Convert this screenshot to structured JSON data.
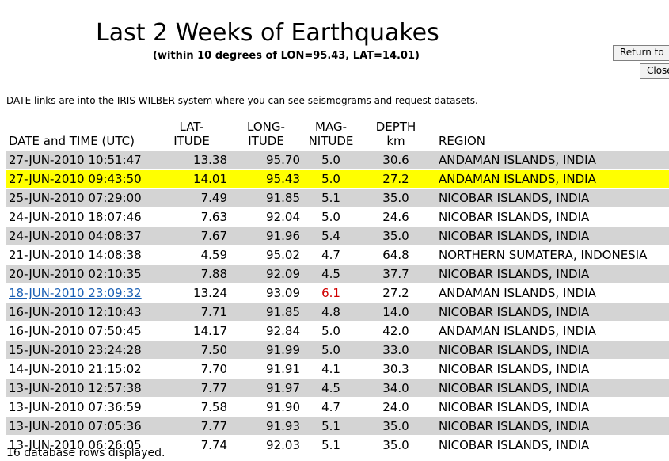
{
  "page": {
    "title": "Last 2 Weeks of Earthquakes",
    "subtitle": "(within 10 degrees of LON=95.43, LAT=14.01)",
    "note": "DATE links are into the IRIS WILBER system where you can see seismograms and request datasets.",
    "footer": "16 database rows displayed."
  },
  "buttons": {
    "return_label": "Return to",
    "close_label": "Close"
  },
  "table": {
    "headers": {
      "date": "DATE and TIME (UTC)",
      "lat_1": "LAT-",
      "lat_2": "ITUDE",
      "lon_1": "LONG-",
      "lon_2": "ITUDE",
      "mag_1": "MAG-",
      "mag_2": "NITUDE",
      "depth_1": "DEPTH",
      "depth_2": "km",
      "region": "REGION"
    },
    "rows": [
      {
        "date": "27-JUN-2010 10:51:47",
        "lat": "13.38",
        "lon": "95.70",
        "mag": "5.0",
        "depth": "30.6",
        "region": "ANDAMAN ISLANDS, INDIA"
      },
      {
        "date": "27-JUN-2010 09:43:50",
        "lat": "14.01",
        "lon": "95.43",
        "mag": "5.0",
        "depth": "27.2",
        "region": "ANDAMAN ISLANDS, INDIA"
      },
      {
        "date": "25-JUN-2010 07:29:00",
        "lat": "7.49",
        "lon": "91.85",
        "mag": "5.1",
        "depth": "35.0",
        "region": "NICOBAR ISLANDS, INDIA"
      },
      {
        "date": "24-JUN-2010 18:07:46",
        "lat": "7.63",
        "lon": "92.04",
        "mag": "5.0",
        "depth": "24.6",
        "region": "NICOBAR ISLANDS, INDIA"
      },
      {
        "date": "24-JUN-2010 04:08:37",
        "lat": "7.67",
        "lon": "91.96",
        "mag": "5.4",
        "depth": "35.0",
        "region": "NICOBAR ISLANDS, INDIA"
      },
      {
        "date": "21-JUN-2010 14:08:38",
        "lat": "4.59",
        "lon": "95.02",
        "mag": "4.7",
        "depth": "64.8",
        "region": "NORTHERN SUMATERA, INDONESIA"
      },
      {
        "date": "20-JUN-2010 02:10:35",
        "lat": "7.88",
        "lon": "92.09",
        "mag": "4.5",
        "depth": "37.7",
        "region": "NICOBAR ISLANDS, INDIA"
      },
      {
        "date": "18-JUN-2010 23:09:32",
        "lat": "13.24",
        "lon": "93.09",
        "mag": "6.1",
        "depth": "27.2",
        "region": "ANDAMAN ISLANDS, INDIA"
      },
      {
        "date": "16-JUN-2010 12:10:43",
        "lat": "7.71",
        "lon": "91.85",
        "mag": "4.8",
        "depth": "14.0",
        "region": "NICOBAR ISLANDS, INDIA"
      },
      {
        "date": "16-JUN-2010 07:50:45",
        "lat": "14.17",
        "lon": "92.84",
        "mag": "5.0",
        "depth": "42.0",
        "region": "ANDAMAN ISLANDS, INDIA"
      },
      {
        "date": "15-JUN-2010 23:24:28",
        "lat": "7.50",
        "lon": "91.99",
        "mag": "5.0",
        "depth": "33.0",
        "region": "NICOBAR ISLANDS, INDIA"
      },
      {
        "date": "14-JUN-2010 21:15:02",
        "lat": "7.70",
        "lon": "91.91",
        "mag": "4.1",
        "depth": "30.3",
        "region": "NICOBAR ISLANDS, INDIA"
      },
      {
        "date": "13-JUN-2010 12:57:38",
        "lat": "7.77",
        "lon": "91.97",
        "mag": "4.5",
        "depth": "34.0",
        "region": "NICOBAR ISLANDS, INDIA"
      },
      {
        "date": "13-JUN-2010 07:36:59",
        "lat": "7.58",
        "lon": "91.90",
        "mag": "4.7",
        "depth": "24.0",
        "region": "NICOBAR ISLANDS, INDIA"
      },
      {
        "date": "13-JUN-2010 07:05:36",
        "lat": "7.77",
        "lon": "91.93",
        "mag": "5.1",
        "depth": "35.0",
        "region": "NICOBAR ISLANDS, INDIA"
      },
      {
        "date": "13-JUN-2010 06:26:05",
        "lat": "7.74",
        "lon": "92.03",
        "mag": "5.1",
        "depth": "35.0",
        "region": "NICOBAR ISLANDS, INDIA"
      }
    ]
  },
  "colors": {
    "highlight_row": "#ffff00",
    "shaded_row": "#d4d4d4",
    "link": "#1a5fb4",
    "large_magnitude": "#d00000"
  }
}
